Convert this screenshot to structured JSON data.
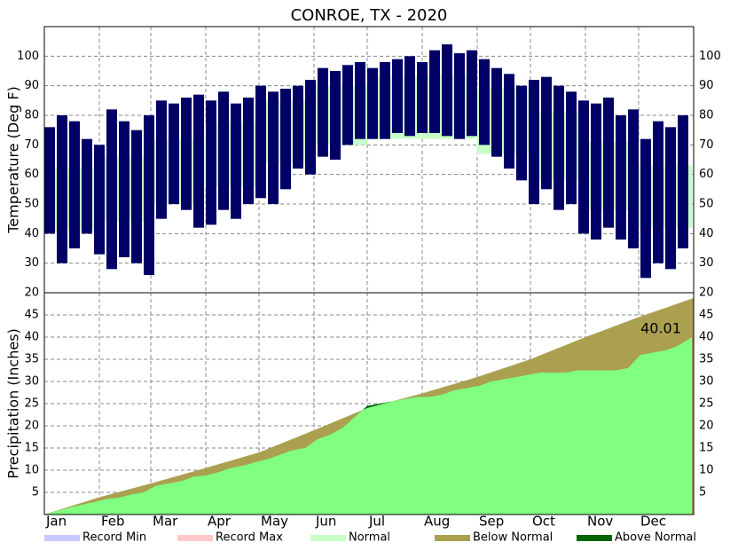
{
  "chart_data": [
    {
      "type": "range-bar",
      "title": "CONROE, TX - 2020",
      "ylabel": "Temperature (Deg F)",
      "x": [
        1,
        8,
        15,
        22,
        29,
        36,
        43,
        50,
        57,
        64,
        71,
        78,
        85,
        92,
        99,
        106,
        113,
        120,
        127,
        134,
        141,
        148,
        155,
        162,
        169,
        176,
        183,
        190,
        197,
        204,
        211,
        218,
        225,
        232,
        239,
        246,
        253,
        260,
        267,
        274,
        281,
        288,
        295,
        302,
        309,
        316,
        323,
        330,
        337,
        344,
        351,
        358
      ],
      "high": [
        76,
        80,
        78,
        72,
        70,
        82,
        78,
        75,
        80,
        85,
        84,
        86,
        87,
        85,
        88,
        84,
        86,
        90,
        88,
        89,
        90,
        92,
        96,
        95,
        97,
        98,
        96,
        98,
        99,
        100,
        98,
        102,
        104,
        101,
        102,
        99,
        96,
        94,
        90,
        92,
        93,
        90,
        88,
        85,
        84,
        86,
        80,
        82,
        72,
        78,
        76,
        80
      ],
      "low": [
        40,
        30,
        35,
        40,
        33,
        28,
        32,
        30,
        26,
        45,
        50,
        48,
        42,
        43,
        48,
        45,
        50,
        52,
        50,
        55,
        62,
        60,
        66,
        65,
        70,
        72,
        72,
        72,
        74,
        73,
        74,
        74,
        73,
        72,
        73,
        70,
        66,
        62,
        58,
        50,
        55,
        48,
        50,
        40,
        38,
        42,
        38,
        35,
        25,
        30,
        28,
        35
      ],
      "color": "#000066",
      "normal": {
        "x": [
          16,
          46,
          76,
          107,
          137,
          168,
          198,
          229,
          260,
          290,
          321,
          351
        ],
        "high": [
          62,
          66,
          72,
          78,
          85,
          90,
          93,
          94,
          89,
          81,
          71,
          63
        ],
        "low": [
          41,
          44,
          50,
          56,
          64,
          70,
          72,
          72,
          67,
          58,
          48,
          42
        ]
      },
      "xlim": [
        1,
        367
      ],
      "ylim": [
        20,
        110
      ],
      "yticks": [
        20,
        30,
        40,
        50,
        60,
        70,
        80,
        90,
        100
      ],
      "grid": true,
      "legend": [
        {
          "name": "Record Min",
          "color": "#c8c8ff"
        },
        {
          "name": "Record Max",
          "color": "#ffc8c8"
        },
        {
          "name": "Normal",
          "color": "#c8ffc8"
        },
        {
          "name": "Below Normal",
          "color": "#aaa050"
        },
        {
          "name": "Above Normal",
          "color": "#006400"
        }
      ]
    },
    {
      "type": "cumulative-area",
      "ylabel": "Precipitation (Inches)",
      "x": [
        1,
        8,
        15,
        22,
        29,
        36,
        43,
        50,
        57,
        64,
        71,
        78,
        85,
        92,
        99,
        106,
        113,
        120,
        127,
        134,
        141,
        148,
        155,
        162,
        169,
        176,
        183,
        190,
        197,
        204,
        211,
        218,
        225,
        232,
        239,
        246,
        253,
        260,
        267,
        274,
        281,
        288,
        295,
        302,
        309,
        316,
        323,
        330,
        337,
        344,
        351,
        358,
        366
      ],
      "values": [
        0,
        0.8,
        1.5,
        2.2,
        2.8,
        3.5,
        3.8,
        4.5,
        5,
        6.5,
        7,
        7.5,
        8.5,
        8.8,
        9.5,
        10.5,
        11,
        11.8,
        12.5,
        13.5,
        14.5,
        15,
        17,
        18,
        19.5,
        22,
        24.5,
        25,
        25.5,
        26,
        26.5,
        26.5,
        27,
        28,
        28.5,
        29,
        30,
        30.5,
        31,
        31.5,
        32,
        32,
        32,
        32.5,
        32.5,
        32.5,
        32.5,
        33,
        36,
        36.5,
        37,
        38,
        40.01
      ],
      "color": "#80ff80",
      "total": 40.01,
      "normal": {
        "x": [
          1,
          32,
          61,
          92,
          122,
          153,
          183,
          214,
          245,
          275,
          306,
          336,
          367
        ],
        "values": [
          0,
          3.9,
          7,
          10.5,
          14,
          19,
          24,
          27.3,
          31,
          35,
          40,
          44.5,
          48.8
        ]
      },
      "xlim": [
        1,
        367
      ],
      "ylim": [
        0,
        50
      ],
      "yticks": [
        5,
        10,
        15,
        20,
        25,
        30,
        35,
        40,
        45
      ],
      "grid": true,
      "xticks": [
        {
          "value": 1,
          "label": "Jan"
        },
        {
          "value": 32,
          "label": "Feb"
        },
        {
          "value": 61,
          "label": "Mar"
        },
        {
          "value": 92,
          "label": "Apr"
        },
        {
          "value": 122,
          "label": "May"
        },
        {
          "value": 153,
          "label": "Jun"
        },
        {
          "value": 183,
          "label": "Jul"
        },
        {
          "value": 214,
          "label": "Aug"
        },
        {
          "value": 245,
          "label": "Sep"
        },
        {
          "value": 275,
          "label": "Oct"
        },
        {
          "value": 306,
          "label": "Nov"
        },
        {
          "value": 336,
          "label": "Dec"
        }
      ]
    }
  ]
}
